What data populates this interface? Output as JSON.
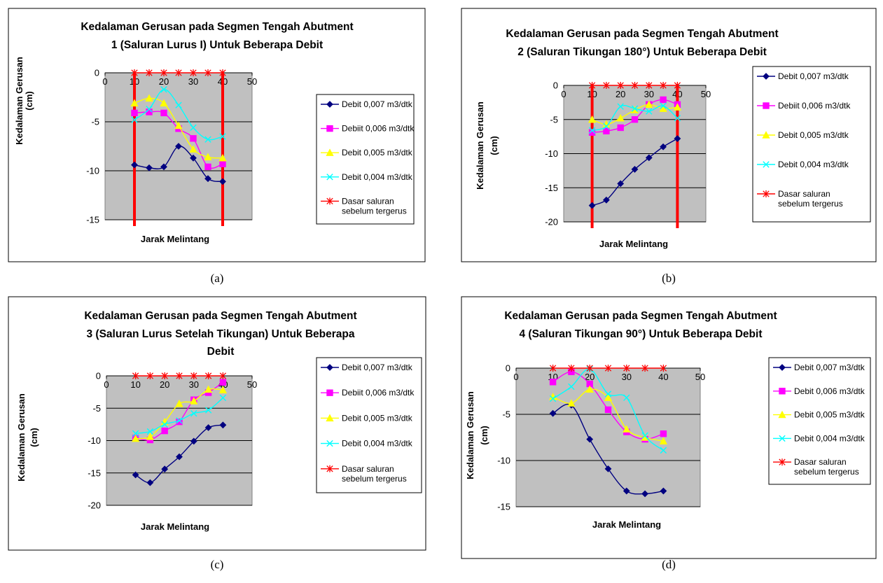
{
  "chart_data": [
    {
      "type": "line",
      "panel_label": "(a)",
      "title_lines": [
        "Kedalaman Gerusan pada Segmen Tengah Abutment",
        "1 (Saluran Lurus I) Untuk Beberapa Debit"
      ],
      "xlabel": "Jarak Melintang",
      "ylabel_lines": [
        "Kedalaman Gerusan",
        "(cm)"
      ],
      "xlim": [
        0,
        50
      ],
      "x_ticks": [
        "0",
        "10",
        "20",
        "30",
        "40",
        "50"
      ],
      "ylim": [
        -15,
        0
      ],
      "y_ticks": [
        "0",
        "-5",
        "-10",
        "-15"
      ],
      "x": [
        10,
        15,
        20,
        25,
        30,
        35,
        40
      ],
      "abutment_lines_x": [
        10,
        40
      ],
      "series": [
        {
          "name": "Debit 0,007 m3/dtk",
          "color": "#000080",
          "marker": "diamond",
          "values": [
            -9.4,
            -9.7,
            -9.6,
            -7.5,
            -8.7,
            -10.8,
            -11.1
          ]
        },
        {
          "name": "Debiit 0,006 m3/dtk",
          "color": "#ff00ff",
          "marker": "square",
          "values": [
            -4.1,
            -4.0,
            -4.1,
            -5.7,
            -6.7,
            -9.6,
            -9.3
          ]
        },
        {
          "name": "Debit 0,005 m3/dtk",
          "color": "#ffff00",
          "marker": "triangle",
          "values": [
            -3.1,
            -2.6,
            -3.1,
            -5.4,
            -7.8,
            -8.6,
            -8.7
          ]
        },
        {
          "name": "Debit 0,004 m3/dtk",
          "color": "#00ffff",
          "marker": "x",
          "values": [
            -4.8,
            -3.7,
            -1.7,
            -3.3,
            -5.6,
            -6.8,
            -6.5
          ]
        },
        {
          "name": "Dasar saluran sebelum tergerus",
          "label_lines": [
            "Dasar saluran",
            "sebelum tergerus"
          ],
          "color": "#ff0000",
          "marker": "star",
          "values": [
            0,
            0,
            0,
            0,
            0,
            0,
            0
          ]
        }
      ]
    },
    {
      "type": "line",
      "panel_label": "(b)",
      "title_lines": [
        "Kedalaman Gerusan pada Segmen Tengah Abutment",
        "2 (Saluran Tikungan 180°) Untuk Beberapa Debit"
      ],
      "xlabel": "Jarak Melintang",
      "ylabel_lines": [
        "Kedalaman Gerusan",
        "(cm)"
      ],
      "xlim": [
        0,
        50
      ],
      "x_ticks": [
        "0",
        "10",
        "20",
        "30",
        "40",
        "50"
      ],
      "ylim": [
        -20,
        0
      ],
      "y_ticks": [
        "0",
        "-5",
        "-10",
        "-15",
        "-20"
      ],
      "x": [
        10,
        15,
        20,
        25,
        30,
        35,
        40
      ],
      "abutment_lines_x": [
        10,
        40
      ],
      "series": [
        {
          "name": "Debit 0,007 m3/dtk",
          "color": "#000080",
          "marker": "diamond",
          "values": [
            -17.6,
            -16.8,
            -14.4,
            -12.3,
            -10.6,
            -9.0,
            -7.8
          ]
        },
        {
          "name": "Debiit 0,006 m3/dtk",
          "color": "#ff00ff",
          "marker": "square",
          "values": [
            -6.9,
            -6.7,
            -6.2,
            -5.0,
            -2.8,
            -2.1,
            -2.8
          ]
        },
        {
          "name": "Debit 0,005 m3/dtk",
          "color": "#ffff00",
          "marker": "triangle",
          "values": [
            -5.0,
            -5.7,
            -4.8,
            -3.6,
            -2.8,
            -3.4,
            -3.2
          ]
        },
        {
          "name": "Debit 0,004 m3/dtk",
          "color": "#00ffff",
          "marker": "x",
          "values": [
            -6.6,
            -6.0,
            -3.1,
            -3.4,
            -3.8,
            -3.0,
            -4.8
          ]
        },
        {
          "name": "Dasar saluran sebelum tergerus",
          "label_lines": [
            "Dasar saluran",
            "sebelum tergerus"
          ],
          "color": "#ff0000",
          "marker": "star",
          "values": [
            0,
            0,
            0,
            0,
            0,
            0,
            0
          ]
        }
      ]
    },
    {
      "type": "line",
      "panel_label": "(c)",
      "title_lines": [
        "Kedalaman Gerusan pada Segmen Tengah Abutment",
        "3 (Saluran Lurus Setelah Tikungan)  Untuk Beberapa",
        "Debit"
      ],
      "xlabel": "Jarak Melintang",
      "ylabel_lines": [
        "Kedalaman Gerusan",
        "(cm)"
      ],
      "xlim": [
        0,
        50
      ],
      "x_ticks": [
        "0",
        "10",
        "20",
        "30",
        "40",
        "50"
      ],
      "ylim": [
        -20,
        0
      ],
      "y_ticks": [
        "0",
        "-5",
        "-10",
        "-15",
        "-20"
      ],
      "x": [
        10,
        15,
        20,
        25,
        30,
        35,
        40
      ],
      "abutment_lines_x": [],
      "series": [
        {
          "name": "Debit 0,007 m3/dtk",
          "color": "#000080",
          "marker": "diamond",
          "values": [
            -15.3,
            -16.5,
            -14.4,
            -12.5,
            -10.1,
            -8.0,
            -7.6
          ]
        },
        {
          "name": "Debiit 0,006 m3/dtk",
          "color": "#ff00ff",
          "marker": "square",
          "values": [
            -9.6,
            -9.9,
            -8.5,
            -7.1,
            -3.7,
            -2.6,
            -1.0
          ]
        },
        {
          "name": "Debit 0,005 m3/dtk",
          "color": "#ffff00",
          "marker": "triangle",
          "values": [
            -9.7,
            -9.4,
            -7.1,
            -4.3,
            -3.9,
            -2.1,
            -2.2
          ]
        },
        {
          "name": "Debit 0,004 m3/dtk",
          "color": "#00ffff",
          "marker": "x",
          "values": [
            -8.9,
            -8.6,
            -7.5,
            -6.9,
            -5.8,
            -5.3,
            -3.4
          ]
        },
        {
          "name": "Dasar saluran sebelum tergerus",
          "label_lines": [
            "Dasar saluran",
            "sebelum tergerus"
          ],
          "color": "#ff0000",
          "marker": "star",
          "values": [
            0,
            0,
            0,
            0,
            0,
            0,
            0
          ]
        }
      ]
    },
    {
      "type": "line",
      "panel_label": "(d)",
      "title_lines": [
        "Kedalaman Gerusan pada Segmen Tengah Abutment",
        "4 (Saluran Tikungan 90°)  Untuk Beberapa Debit"
      ],
      "xlabel": "Jarak Melintang",
      "ylabel_lines": [
        "Kedalaman Gerusan",
        "(cm)"
      ],
      "xlim": [
        0,
        50
      ],
      "x_ticks": [
        "0",
        "10",
        "20",
        "30",
        "40",
        "50"
      ],
      "ylim": [
        -15,
        0
      ],
      "y_ticks": [
        "0",
        "-5",
        "-10",
        "-15"
      ],
      "x": [
        10,
        15,
        20,
        25,
        30,
        35,
        40
      ],
      "abutment_lines_x": [],
      "series": [
        {
          "name": "Debit 0,007 m3/dtk",
          "color": "#000080",
          "marker": "diamond",
          "values": [
            -4.9,
            -4.0,
            -7.7,
            -10.9,
            -13.3,
            -13.6,
            -13.3
          ]
        },
        {
          "name": "Debit 0,006 m3/dtk",
          "color": "#ff00ff",
          "marker": "square",
          "values": [
            -1.5,
            -0.4,
            -1.7,
            -4.5,
            -6.9,
            -7.7,
            -7.1
          ]
        },
        {
          "name": "Debit 0,005 m3/dtk",
          "color": "#ffff00",
          "marker": "triangle",
          "values": [
            -3.1,
            -3.8,
            -2.3,
            -3.2,
            -6.6,
            -7.5,
            -7.9
          ]
        },
        {
          "name": "Debit 0,004 m3/dtk",
          "color": "#00ffff",
          "marker": "x",
          "values": [
            -3.3,
            -2.0,
            -0.1,
            -2.8,
            -3.2,
            -7.3,
            -8.9
          ]
        },
        {
          "name": "Dasar saluran sebelum tergerus",
          "label_lines": [
            "Dasar saluran",
            "sebelum tergerus"
          ],
          "color": "#ff0000",
          "marker": "star",
          "values": [
            0,
            0,
            0,
            0,
            0,
            0,
            0
          ]
        }
      ]
    }
  ]
}
